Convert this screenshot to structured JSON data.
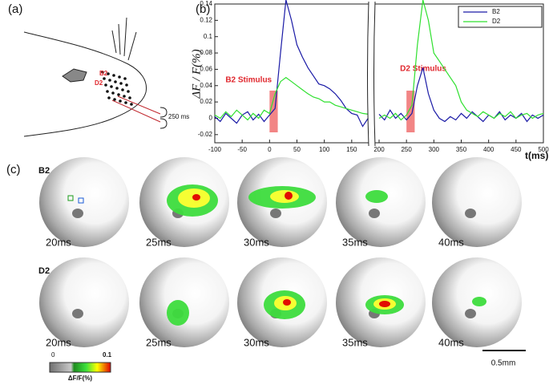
{
  "panel_labels": [
    "(a)",
    "(b)",
    "(c)"
  ],
  "panel_a": {
    "whisker_labels": [
      "B2",
      "D2"
    ],
    "duration": "250 ms"
  },
  "chart_data": {
    "type": "line",
    "x_label": "t(ms)",
    "y_label": "ΔF / F(%)",
    "x": [
      -100,
      -90,
      -80,
      -70,
      -60,
      -50,
      -40,
      -30,
      -20,
      -10,
      0,
      10,
      20,
      30,
      40,
      50,
      60,
      70,
      80,
      90,
      100,
      110,
      120,
      130,
      140,
      150,
      160,
      170,
      180,
      190,
      200,
      210,
      220,
      230,
      240,
      250,
      260,
      270,
      280,
      290,
      300,
      310,
      320,
      330,
      340,
      350,
      360,
      370,
      380,
      390,
      400,
      410,
      420,
      430,
      440,
      450,
      460,
      470,
      480,
      490,
      500
    ],
    "series": [
      {
        "name": "B2",
        "color": "#1a1aa6",
        "values": [
          0.002,
          -0.004,
          0.006,
          0.0,
          -0.006,
          0.004,
          0.008,
          -0.002,
          0.005,
          -0.004,
          0.004,
          0.012,
          0.08,
          0.145,
          0.12,
          0.09,
          0.075,
          0.062,
          0.052,
          0.042,
          0.04,
          0.036,
          0.03,
          0.022,
          0.012,
          0.006,
          0.004,
          -0.01,
          0.0,
          null,
          0.005,
          -0.002,
          0.01,
          0.0,
          0.006,
          -0.002,
          0.006,
          0.04,
          0.062,
          0.03,
          0.01,
          0.0,
          -0.004,
          0.002,
          -0.002,
          0.006,
          0.0,
          0.008,
          0.002,
          -0.004,
          0.004,
          0.0,
          0.008,
          -0.002,
          0.004,
          0.0,
          0.006,
          -0.004,
          0.004,
          0.0,
          0.004
        ]
      },
      {
        "name": "D2",
        "color": "#2fe02f",
        "values": [
          0.004,
          0.0,
          0.008,
          0.002,
          0.01,
          0.004,
          -0.002,
          0.006,
          0.0,
          0.01,
          0.006,
          0.03,
          0.045,
          0.05,
          0.045,
          0.04,
          0.035,
          0.03,
          0.026,
          0.024,
          0.02,
          0.02,
          0.016,
          0.014,
          0.012,
          0.01,
          0.008,
          0.006,
          0.005,
          null,
          0.0,
          0.004,
          0.0,
          0.006,
          -0.002,
          0.004,
          0.016,
          0.09,
          0.145,
          0.12,
          0.08,
          0.07,
          0.06,
          0.05,
          0.04,
          0.02,
          0.01,
          0.006,
          0.002,
          0.008,
          0.004,
          0.0,
          0.006,
          0.002,
          0.008,
          0.0,
          0.004,
          0.006,
          0.0,
          0.004,
          0.006
        ]
      }
    ],
    "annotations": [
      {
        "text": "B2 Stimulus",
        "start": 0,
        "end": 15
      },
      {
        "text": "D2 Stimulus",
        "start": 250,
        "end": 265
      }
    ],
    "xlim": [
      -100,
      500
    ],
    "xticks": [
      -100,
      -50,
      0,
      50,
      100,
      150,
      200,
      250,
      300,
      350,
      400,
      450,
      500
    ],
    "ylim": [
      -0.03,
      0.14
    ],
    "yticks": [
      -0.02,
      0,
      0.02,
      0.04,
      0.06,
      0.08,
      0.1,
      0.12,
      0.14
    ],
    "legend": "upper right"
  },
  "panel_c": {
    "rows": [
      {
        "label": "B2",
        "times": [
          "20ms",
          "25ms",
          "30ms",
          "35ms",
          "40ms"
        ]
      },
      {
        "label": "D2",
        "times": [
          "20ms",
          "25ms",
          "30ms",
          "35ms",
          "40ms"
        ]
      }
    ],
    "colorbar": {
      "min_label": "0",
      "max_label": "0.1",
      "title": "ΔF/F(%)"
    },
    "scale_bar": "0.5mm"
  }
}
